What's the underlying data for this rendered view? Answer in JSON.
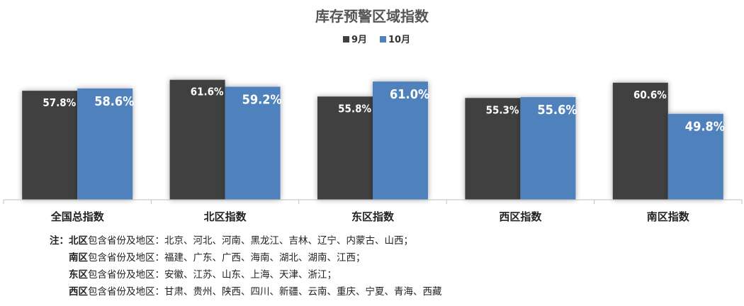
{
  "chart_data": {
    "type": "bar",
    "title": "库存预警区域指数",
    "categories": [
      "全国总指数",
      "北区指数",
      "东区指数",
      "西区指数",
      "南区指数"
    ],
    "series": [
      {
        "name": "9月",
        "values": [
          57.8,
          61.6,
          55.8,
          55.3,
          60.6
        ],
        "labels": [
          "57.8%",
          "61.6%",
          "55.8%",
          "55.3%",
          "60.6%"
        ],
        "color": "#404040"
      },
      {
        "name": "10月",
        "values": [
          58.6,
          59.2,
          61.0,
          55.6,
          49.8
        ],
        "labels": [
          "58.6%",
          "59.2%",
          "61.0%",
          "55.6%",
          "49.8%"
        ],
        "color": "#4F81BD"
      }
    ],
    "unit": "%",
    "ylim": [
      20,
      63
    ],
    "legend_position": "top-center",
    "grid": false
  },
  "notes": [
    {
      "prefix": "注：",
      "region": "北区",
      "text": "包含省份及地区：北京、河北、河南、黑龙江、吉林、辽宁、内蒙古、山西；"
    },
    {
      "prefix": "",
      "region": "南区",
      "text": "包含省份及地区：福建、广东、广西、海南、湖北、湖南、江西；"
    },
    {
      "prefix": "",
      "region": "东区",
      "text": "包含省份及地区：安徽、江苏、山东、上海、天津、浙江；"
    },
    {
      "prefix": "",
      "region": "西区",
      "text": "包含省份及地区：甘肃、贵州、陕西、四川、新疆、云南、重庆、宁夏、青海、西藏"
    }
  ]
}
